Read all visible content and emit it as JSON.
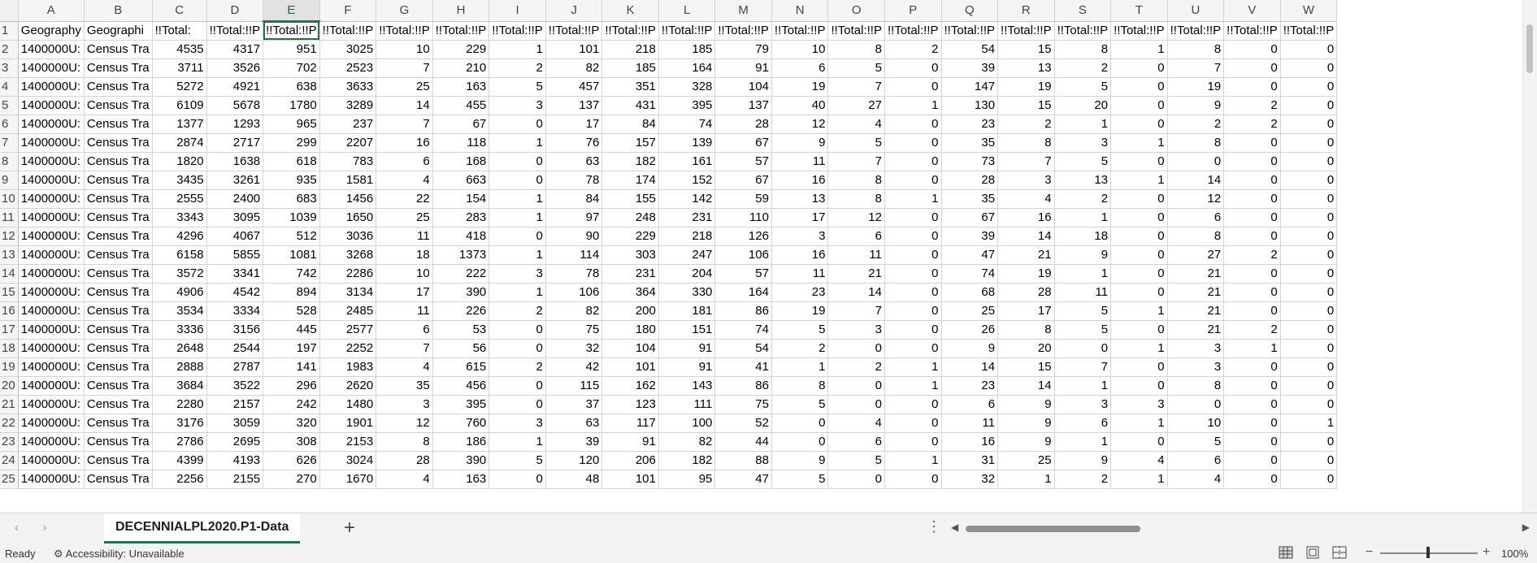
{
  "sheet": {
    "columns": [
      "A",
      "B",
      "C",
      "D",
      "E",
      "F",
      "G",
      "H",
      "I",
      "J",
      "K",
      "L",
      "M",
      "N",
      "O",
      "P",
      "Q",
      "R",
      "S",
      "T",
      "U",
      "V",
      "W"
    ],
    "selected_column": "E",
    "header_row": [
      "Geography",
      "Geographi",
      "!!Total:",
      "!!Total:!!P",
      "!!Total:!!P",
      "!!Total:!!P",
      "!!Total:!!P",
      "!!Total:!!P",
      "!!Total:!!P",
      "!!Total:!!P",
      "!!Total:!!P",
      "!!Total:!!P",
      "!!Total:!!P",
      "!!Total:!!P",
      "!!Total:!!P",
      "!!Total:!!P",
      "!!Total:!!P",
      "!!Total:!!P",
      "!!Total:!!P",
      "!!Total:!!P",
      "!!Total:!!P",
      "!!Total:!!P",
      "!!Total:!!P"
    ],
    "rows": [
      [
        "1400000U:",
        "Census Tra",
        4535,
        4317,
        951,
        3025,
        10,
        229,
        1,
        101,
        218,
        185,
        79,
        10,
        8,
        2,
        54,
        15,
        8,
        1,
        8,
        0,
        0
      ],
      [
        "1400000U:",
        "Census Tra",
        3711,
        3526,
        702,
        2523,
        7,
        210,
        2,
        82,
        185,
        164,
        91,
        6,
        5,
        0,
        39,
        13,
        2,
        0,
        7,
        0,
        0
      ],
      [
        "1400000U:",
        "Census Tra",
        5272,
        4921,
        638,
        3633,
        25,
        163,
        5,
        457,
        351,
        328,
        104,
        19,
        7,
        0,
        147,
        19,
        5,
        0,
        19,
        0,
        0
      ],
      [
        "1400000U:",
        "Census Tra",
        6109,
        5678,
        1780,
        3289,
        14,
        455,
        3,
        137,
        431,
        395,
        137,
        40,
        27,
        1,
        130,
        15,
        20,
        0,
        9,
        2,
        0
      ],
      [
        "1400000U:",
        "Census Tra",
        1377,
        1293,
        965,
        237,
        7,
        67,
        0,
        17,
        84,
        74,
        28,
        12,
        4,
        0,
        23,
        2,
        1,
        0,
        2,
        2,
        0
      ],
      [
        "1400000U:",
        "Census Tra",
        2874,
        2717,
        299,
        2207,
        16,
        118,
        1,
        76,
        157,
        139,
        67,
        9,
        5,
        0,
        35,
        8,
        3,
        1,
        8,
        0,
        0
      ],
      [
        "1400000U:",
        "Census Tra",
        1820,
        1638,
        618,
        783,
        6,
        168,
        0,
        63,
        182,
        161,
        57,
        11,
        7,
        0,
        73,
        7,
        5,
        0,
        0,
        0,
        0
      ],
      [
        "1400000U:",
        "Census Tra",
        3435,
        3261,
        935,
        1581,
        4,
        663,
        0,
        78,
        174,
        152,
        67,
        16,
        8,
        0,
        28,
        3,
        13,
        1,
        14,
        0,
        0
      ],
      [
        "1400000U:",
        "Census Tra",
        2555,
        2400,
        683,
        1456,
        22,
        154,
        1,
        84,
        155,
        142,
        59,
        13,
        8,
        1,
        35,
        4,
        2,
        0,
        12,
        0,
        0
      ],
      [
        "1400000U:",
        "Census Tra",
        3343,
        3095,
        1039,
        1650,
        25,
        283,
        1,
        97,
        248,
        231,
        110,
        17,
        12,
        0,
        67,
        16,
        1,
        0,
        6,
        0,
        0
      ],
      [
        "1400000U:",
        "Census Tra",
        4296,
        4067,
        512,
        3036,
        11,
        418,
        0,
        90,
        229,
        218,
        126,
        3,
        6,
        0,
        39,
        14,
        18,
        0,
        8,
        0,
        0
      ],
      [
        "1400000U:",
        "Census Tra",
        6158,
        5855,
        1081,
        3268,
        18,
        1373,
        1,
        114,
        303,
        247,
        106,
        16,
        11,
        0,
        47,
        21,
        9,
        0,
        27,
        2,
        0
      ],
      [
        "1400000U:",
        "Census Tra",
        3572,
        3341,
        742,
        2286,
        10,
        222,
        3,
        78,
        231,
        204,
        57,
        11,
        21,
        0,
        74,
        19,
        1,
        0,
        21,
        0,
        0
      ],
      [
        "1400000U:",
        "Census Tra",
        4906,
        4542,
        894,
        3134,
        17,
        390,
        1,
        106,
        364,
        330,
        164,
        23,
        14,
        0,
        68,
        28,
        11,
        0,
        21,
        0,
        0
      ],
      [
        "1400000U:",
        "Census Tra",
        3534,
        3334,
        528,
        2485,
        11,
        226,
        2,
        82,
        200,
        181,
        86,
        19,
        7,
        0,
        25,
        17,
        5,
        1,
        21,
        0,
        0
      ],
      [
        "1400000U:",
        "Census Tra",
        3336,
        3156,
        445,
        2577,
        6,
        53,
        0,
        75,
        180,
        151,
        74,
        5,
        3,
        0,
        26,
        8,
        5,
        0,
        21,
        2,
        0
      ],
      [
        "1400000U:",
        "Census Tra",
        2648,
        2544,
        197,
        2252,
        7,
        56,
        0,
        32,
        104,
        91,
        54,
        2,
        0,
        0,
        9,
        20,
        0,
        1,
        3,
        1,
        0
      ],
      [
        "1400000U:",
        "Census Tra",
        2888,
        2787,
        141,
        1983,
        4,
        615,
        2,
        42,
        101,
        91,
        41,
        1,
        2,
        1,
        14,
        15,
        7,
        0,
        3,
        0,
        0
      ],
      [
        "1400000U:",
        "Census Tra",
        3684,
        3522,
        296,
        2620,
        35,
        456,
        0,
        115,
        162,
        143,
        86,
        8,
        0,
        1,
        23,
        14,
        1,
        0,
        8,
        0,
        0
      ],
      [
        "1400000U:",
        "Census Tra",
        2280,
        2157,
        242,
        1480,
        3,
        395,
        0,
        37,
        123,
        111,
        75,
        5,
        0,
        0,
        6,
        9,
        3,
        3,
        0,
        0,
        0
      ],
      [
        "1400000U:",
        "Census Tra",
        3176,
        3059,
        320,
        1901,
        12,
        760,
        3,
        63,
        117,
        100,
        52,
        0,
        4,
        0,
        11,
        9,
        6,
        1,
        10,
        0,
        1
      ],
      [
        "1400000U:",
        "Census Tra",
        2786,
        2695,
        308,
        2153,
        8,
        186,
        1,
        39,
        91,
        82,
        44,
        0,
        6,
        0,
        16,
        9,
        1,
        0,
        5,
        0,
        0
      ],
      [
        "1400000U:",
        "Census Tra",
        4399,
        4193,
        626,
        3024,
        28,
        390,
        5,
        120,
        206,
        182,
        88,
        9,
        5,
        1,
        31,
        25,
        9,
        4,
        6,
        0,
        0
      ],
      [
        "1400000U:",
        "Census Tra",
        2256,
        2155,
        270,
        1670,
        4,
        163,
        0,
        48,
        101,
        95,
        47,
        5,
        0,
        0,
        32,
        1,
        2,
        1,
        4,
        0,
        0
      ]
    ]
  },
  "tabs": {
    "active_sheet": "DECENNIALPL2020.P1-Data",
    "add_label": "+",
    "menu_label": "⋮"
  },
  "status": {
    "ready": "Ready",
    "accessibility": "Accessibility: Unavailable",
    "zoom": "100%",
    "zoom_out": "−",
    "zoom_in": "+"
  }
}
